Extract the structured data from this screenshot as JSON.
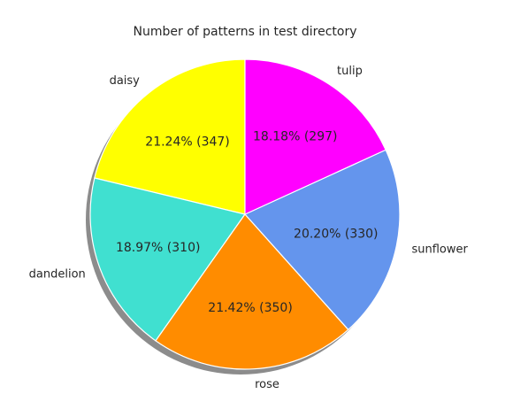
{
  "chart_data": {
    "type": "pie",
    "title": "Number of patterns in test directory",
    "categories": [
      "daisy",
      "dandelion",
      "rose",
      "sunflower",
      "tulip"
    ],
    "values": [
      347,
      310,
      350,
      330,
      297
    ],
    "percent_labels": [
      "21.24%  (347)",
      "18.97%  (310)",
      "21.42%  (350)",
      "20.20%  (330)",
      "18.18%  (297)"
    ],
    "colors": [
      "#ffff00",
      "#40e0d0",
      "#ff8c00",
      "#6495ed",
      "#ff00ff"
    ],
    "start_angle_deg": 90,
    "direction": "counterclockwise",
    "shadow": true,
    "legend": "none"
  }
}
